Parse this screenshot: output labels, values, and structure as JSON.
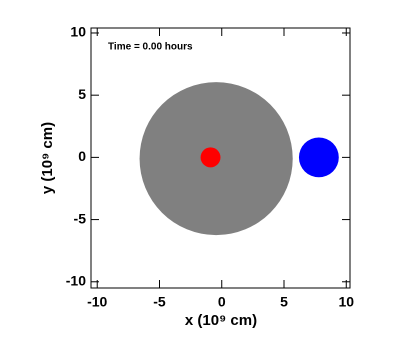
{
  "chart_data": {
    "type": "particles",
    "annotation": "Time =   0.00 hours",
    "xlabel": "x (10⁹ cm)",
    "ylabel": "y (10⁹ cm)",
    "xlim": [
      -10.5,
      10.3
    ],
    "ylim": [
      -10.5,
      10.4
    ],
    "xticks": [
      -10,
      -5,
      0,
      5,
      10
    ],
    "yticks": [
      -10,
      -5,
      0,
      5,
      10
    ],
    "series": [
      {
        "color": "#808080",
        "x": -0.45,
        "y": -0.1,
        "r": 6.15
      },
      {
        "color": "#ff0000",
        "x": -0.9,
        "y": 0.0,
        "r": 0.8
      },
      {
        "color": "#0000ff",
        "x": 7.8,
        "y": 0.0,
        "r": 1.6
      }
    ]
  }
}
